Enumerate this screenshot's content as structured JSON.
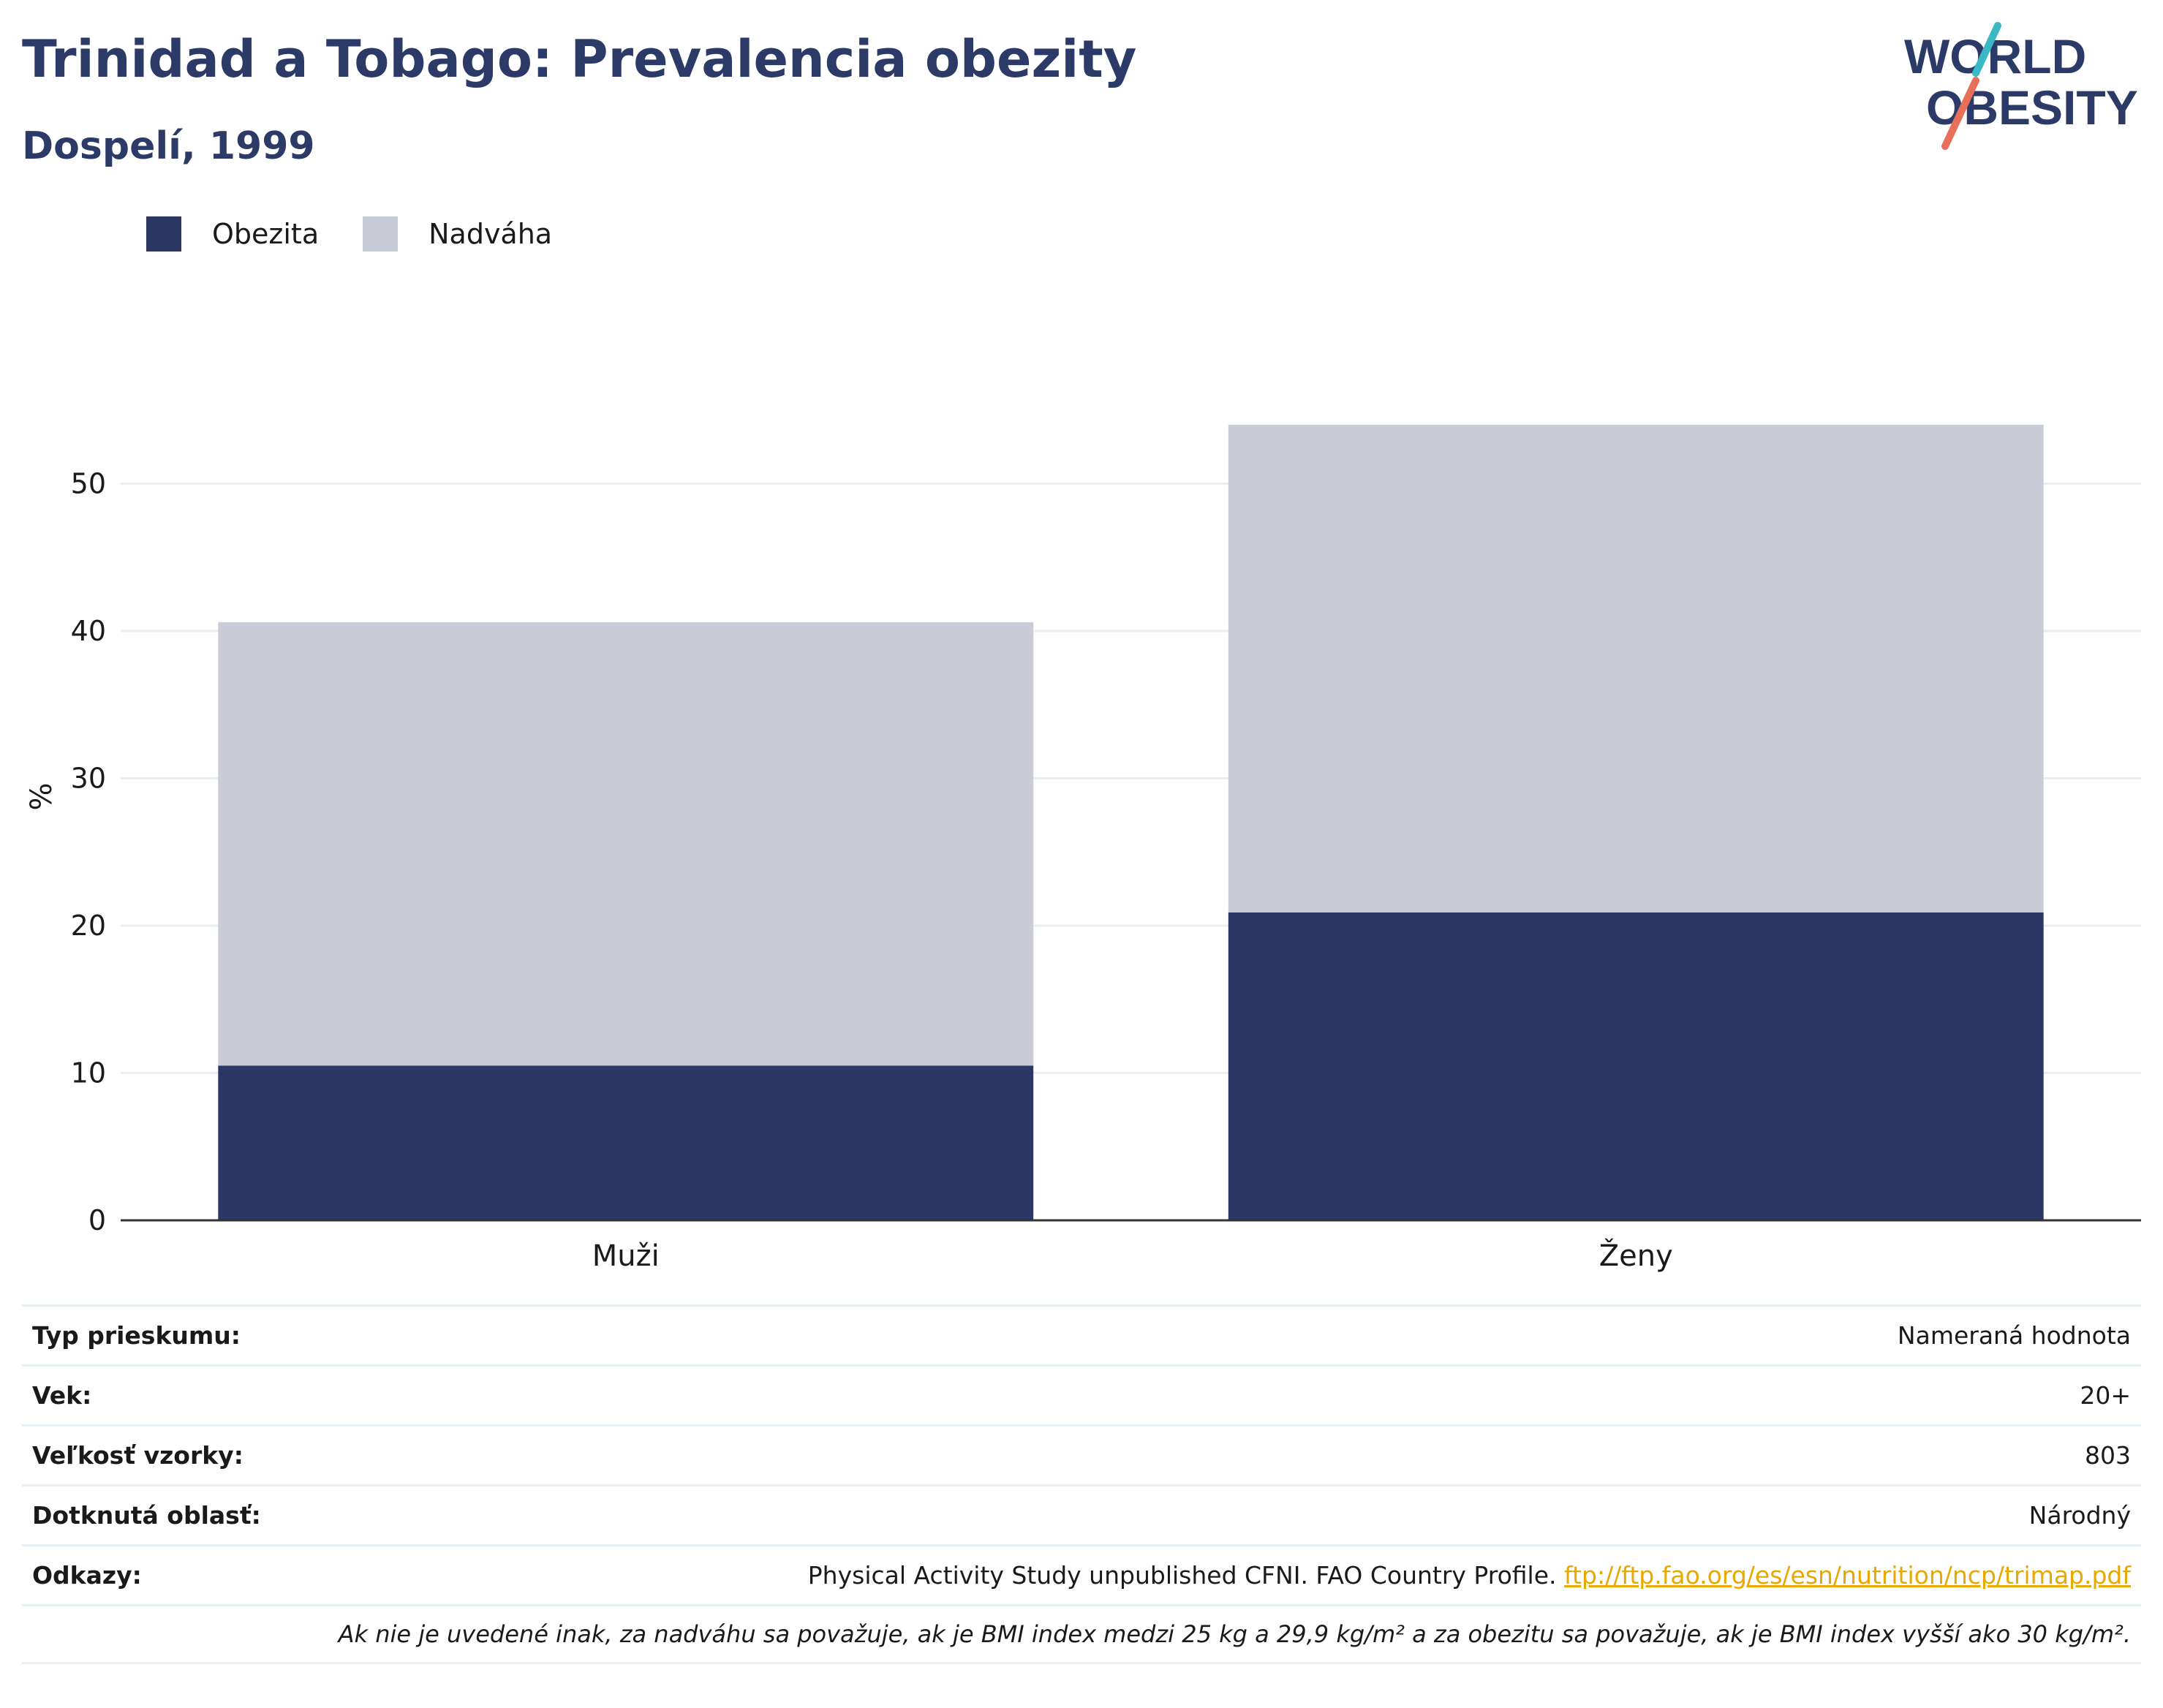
{
  "header": {
    "title": "Trinidad a Tobago: Prevalencia obezity",
    "subtitle": "Dospelí, 1999",
    "logo_line1": "WORLD",
    "logo_line2": "OBESITY"
  },
  "colors": {
    "obesity": "#2b3765",
    "overweight": "#cacdd8",
    "title": "#2b3a67",
    "link": "#e8a800",
    "logo_teal": "#3bb8c3",
    "logo_coral": "#e8705a"
  },
  "chart_data": {
    "type": "bar",
    "stacked": true,
    "categories": [
      "Muži",
      "Ženy"
    ],
    "series": [
      {
        "name": "Obezita",
        "values": [
          10.5,
          20.9
        ]
      },
      {
        "name": "Nadváha",
        "values": [
          30.1,
          33.1
        ]
      }
    ],
    "ylabel": "%",
    "xlabel": "",
    "ylim": [
      0,
      60
    ],
    "yticks": [
      0,
      10,
      20,
      30,
      40,
      50
    ],
    "grid": true,
    "legend": "top-left"
  },
  "info": {
    "rows": [
      {
        "label": "Typ prieskumu:",
        "value": "Nameraná hodnota"
      },
      {
        "label": "Vek:",
        "value": "20+"
      },
      {
        "label": "Veľkosť vzorky:",
        "value": "803"
      },
      {
        "label": "Dotknutá oblasť:",
        "value": "Národný"
      }
    ],
    "ref_label": "Odkazy:",
    "ref_text": "Physical Activity Study unpublished CFNI. FAO Country Profile.",
    "ref_link": "ftp://ftp.fao.org/es/esn/nutrition/ncp/trimap.pdf",
    "note": "Ak nie je uvedené inak, za nadváhu sa považuje, ak je BMI index medzi 25 kg a 29,9 kg/m² a za obezitu sa považuje, ak je BMI index vyšší ako 30 kg/m²."
  }
}
